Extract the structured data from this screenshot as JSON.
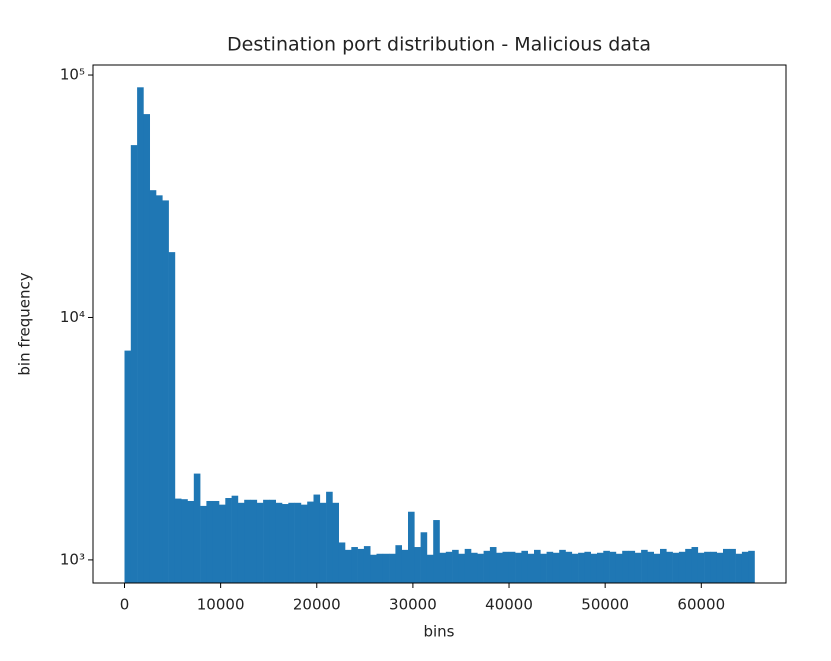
{
  "chart_data": {
    "type": "histogram",
    "title": "Destination port distribution - Malicious data",
    "xlabel": "bins",
    "ylabel": "bin frequency",
    "color": "#1f77b4",
    "log_y": true,
    "bin_start": 0,
    "bin_end": 65535,
    "values": [
      7300,
      51400,
      89000,
      69000,
      33500,
      31900,
      30400,
      18600,
      1790,
      1780,
      1750,
      2270,
      1670,
      1750,
      1750,
      1690,
      1800,
      1840,
      1720,
      1770,
      1770,
      1720,
      1770,
      1770,
      1720,
      1700,
      1720,
      1720,
      1690,
      1740,
      1860,
      1720,
      1910,
      1720,
      1180,
      1100,
      1130,
      1110,
      1140,
      1050,
      1060,
      1060,
      1060,
      1150,
      1100,
      1580,
      1130,
      1300,
      1050,
      1460,
      1070,
      1080,
      1100,
      1060,
      1110,
      1070,
      1060,
      1090,
      1130,
      1070,
      1080,
      1080,
      1070,
      1090,
      1060,
      1100,
      1060,
      1080,
      1070,
      1100,
      1080,
      1060,
      1070,
      1080,
      1060,
      1070,
      1090,
      1080,
      1060,
      1090,
      1090,
      1070,
      1100,
      1080,
      1060,
      1110,
      1080,
      1070,
      1080,
      1110,
      1130,
      1070,
      1080,
      1080,
      1070,
      1110,
      1110,
      1060,
      1080,
      1090
    ],
    "xlim": [
      -3277,
      68812
    ],
    "xticks": [
      0,
      10000,
      20000,
      30000,
      40000,
      50000,
      60000
    ],
    "ylim": [
      803,
      110000
    ],
    "yticks": [
      {
        "value": 1000,
        "label": "10³"
      },
      {
        "value": 10000,
        "label": "10⁴"
      },
      {
        "value": 100000,
        "label": "10⁵"
      }
    ]
  }
}
